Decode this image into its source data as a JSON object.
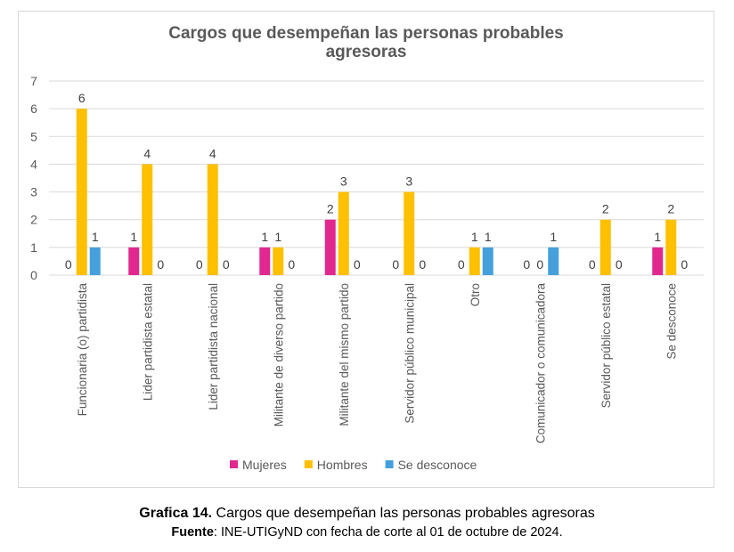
{
  "chart_data": {
    "type": "bar",
    "title": "Cargos que desempeñan las personas probables agresoras",
    "categories": [
      "Funcionaria (o) partidista",
      "Lider partidista estatal",
      "Lider partidista nacional",
      "Militante de diverso partido",
      "Militante del mismo partido",
      "Servidor público municipal",
      "Otro",
      "Comunicador o comunicadora",
      "Servidor público estatal",
      "Se desconoce"
    ],
    "series": [
      {
        "name": "Mujeres",
        "color": "#e0288f",
        "values": [
          0,
          1,
          0,
          1,
          2,
          0,
          0,
          0,
          0,
          1
        ]
      },
      {
        "name": "Hombres",
        "color": "#ffc000",
        "values": [
          6,
          4,
          4,
          1,
          3,
          3,
          1,
          0,
          2,
          2
        ]
      },
      {
        "name": "Se desconoce",
        "color": "#45a0dc",
        "values": [
          1,
          0,
          0,
          0,
          0,
          0,
          1,
          1,
          0,
          0
        ]
      }
    ],
    "ylim": [
      0,
      7
    ],
    "yticks": [
      "0",
      "1",
      "2",
      "3",
      "4",
      "5",
      "6",
      "7"
    ],
    "grid": true,
    "data_labels": true,
    "legend": "bottom"
  },
  "caption": {
    "label": "Grafica 14.",
    "text": " Cargos que desempeñan las personas probables agresoras",
    "source_label": "Fuente",
    "source_text": ": INE-UTIGyND con fecha de corte al 01 de octubre de 2024."
  }
}
